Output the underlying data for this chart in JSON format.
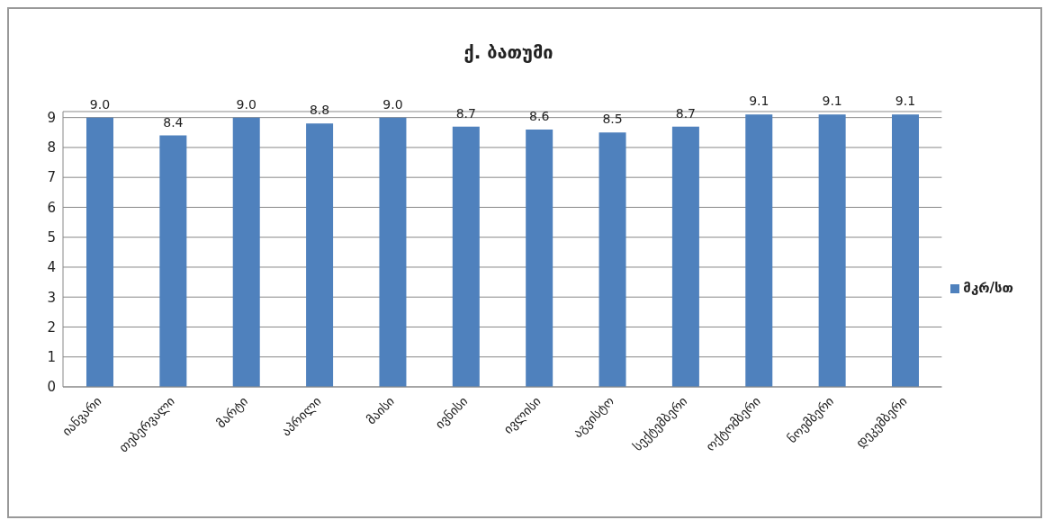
{
  "chart_data": {
    "type": "bar",
    "title": "ქ. ბათუმი",
    "categories": [
      "იანვარი",
      "თებერვალი",
      "მარტი",
      "აპრილი",
      "მაისი",
      "ივნისი",
      "ივლისი",
      "აგვისტო",
      "სექტემბერი",
      "ოქტომბერი",
      "ნოემბერი",
      "დეკემბერი"
    ],
    "series": [
      {
        "name": "მკრ/სთ",
        "color": "#4f81bd",
        "values": [
          9.0,
          8.4,
          9.0,
          8.8,
          9.0,
          8.7,
          8.6,
          8.5,
          8.7,
          9.1,
          9.1,
          9.1
        ],
        "value_labels": [
          "9.0",
          "8.4",
          "9.0",
          "8.8",
          "9.0",
          "8.7",
          "8.6",
          "8.5",
          "8.7",
          "9.1",
          "9.1",
          "9.1"
        ]
      }
    ],
    "ylim": [
      0,
      9.2
    ],
    "yticks": [
      0,
      1,
      2,
      3,
      4,
      5,
      6,
      7,
      8,
      9
    ],
    "grid": "y",
    "legend": "right"
  }
}
